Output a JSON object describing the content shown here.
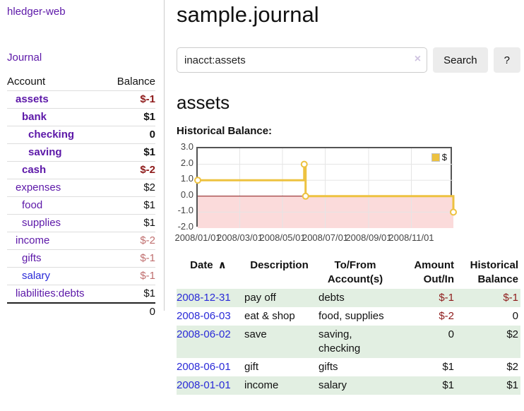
{
  "colors": {
    "purple": "#5c17a8",
    "blue": "#2a2ad8",
    "neg": "#8e1b1b",
    "neg_light": "#c06f6f",
    "row_green": "#e2efe2",
    "gold": "#edc240",
    "pink_fill": "#fbdbdb",
    "zero_line": "#871111",
    "btn_bg": "#ececec",
    "clear": "#cfc3e0",
    "grid": "#e5e5e5",
    "plot_border": "#545454",
    "divider": "#cccccc",
    "row_border": "#dddddd"
  },
  "app": {
    "title": "hledger-web"
  },
  "sidebar": {
    "journal_link": "Journal",
    "table": {
      "headers": {
        "account": "Account",
        "balance": "Balance"
      },
      "rows": [
        {
          "account": "assets",
          "balance": "$-1",
          "depth": 0,
          "emph": true,
          "balance_tone": "neg"
        },
        {
          "account": "bank",
          "balance": "$1",
          "depth": 1,
          "emph": true,
          "balance_tone": ""
        },
        {
          "account": "checking",
          "balance": "0",
          "depth": 2,
          "emph": true,
          "balance_tone": ""
        },
        {
          "account": "saving",
          "balance": "$1",
          "depth": 2,
          "emph": true,
          "balance_tone": ""
        },
        {
          "account": "cash",
          "balance": "$-2",
          "depth": 1,
          "emph": true,
          "balance_tone": "neg"
        },
        {
          "account": "expenses",
          "balance": "$2",
          "depth": 0,
          "emph": false,
          "balance_tone": ""
        },
        {
          "account": "food",
          "balance": "$1",
          "depth": 1,
          "emph": false,
          "balance_tone": ""
        },
        {
          "account": "supplies",
          "balance": "$1",
          "depth": 1,
          "emph": false,
          "balance_tone": ""
        },
        {
          "account": "income",
          "balance": "$-2",
          "depth": 0,
          "emph": false,
          "balance_tone": "neg-light"
        },
        {
          "account": "gifts",
          "balance": "$-1",
          "depth": 1,
          "emph": false,
          "balance_tone": "neg-light"
        },
        {
          "account": "salary",
          "balance": "$-1",
          "depth": 1,
          "emph": false,
          "balance_tone": "neg-light",
          "link_tone": "blue"
        },
        {
          "account": "liabilities:debts",
          "balance": "$1",
          "depth": 0,
          "emph": false,
          "balance_tone": ""
        }
      ],
      "total": "0"
    }
  },
  "header": {
    "title": "sample.journal"
  },
  "search": {
    "value": "inacct:assets",
    "clear_icon": "×",
    "search_button": "Search",
    "help_button": "?"
  },
  "account_page": {
    "heading": "assets",
    "chart_label": "Historical Balance:"
  },
  "chart_data": {
    "type": "line",
    "title": "Historical Balance:",
    "step": true,
    "xrange": [
      "2008-01-01",
      "2008-12-31"
    ],
    "ylim": [
      -2,
      3
    ],
    "yticks": [
      "3.0",
      "2.0",
      "1.0",
      "0.0",
      "-1.0",
      "-2.0"
    ],
    "xticks": [
      "2008/01/01",
      "2008/03/01",
      "2008/05/01",
      "2008/07/01",
      "2008/09/01",
      "2008/11/01"
    ],
    "series": [
      {
        "name": "$",
        "color": "#edc240",
        "points": [
          [
            "2008-01-01",
            1
          ],
          [
            "2008-06-01",
            2
          ],
          [
            "2008-06-03",
            0
          ],
          [
            "2008-12-31",
            -1
          ]
        ]
      }
    ],
    "negative_fill": "#fbdbdb",
    "zero_line_color": "#871111",
    "grid": true,
    "legend_position": "top-right"
  },
  "register": {
    "sort_icon": "∧",
    "columns": [
      {
        "label": "Date",
        "label2": "",
        "align": "left",
        "sorted": true
      },
      {
        "label": "Description",
        "label2": "",
        "align": "left"
      },
      {
        "label": "To/From",
        "label2": "Account(s)",
        "align": "left"
      },
      {
        "label": "Amount",
        "label2": "Out/In",
        "align": "right"
      },
      {
        "label": "Historical",
        "label2": "Balance",
        "align": "right"
      }
    ],
    "rows": [
      {
        "date": "2008-12-31",
        "description": "pay off",
        "accounts": "debts",
        "amount": "$-1",
        "amount_tone": "neg",
        "balance": "$-1",
        "balance_tone": "neg"
      },
      {
        "date": "2008-06-03",
        "description": "eat & shop",
        "accounts": "food, supplies",
        "amount": "$-2",
        "amount_tone": "neg",
        "balance": "0",
        "balance_tone": ""
      },
      {
        "date": "2008-06-02",
        "description": "save",
        "accounts": "saving, checking",
        "amount": "0",
        "amount_tone": "",
        "balance": "$2",
        "balance_tone": ""
      },
      {
        "date": "2008-06-01",
        "description": "gift",
        "accounts": "gifts",
        "amount": "$1",
        "amount_tone": "",
        "balance": "$2",
        "balance_tone": ""
      },
      {
        "date": "2008-01-01",
        "description": "income",
        "accounts": "salary",
        "amount": "$1",
        "amount_tone": "",
        "balance": "$1",
        "balance_tone": ""
      }
    ]
  }
}
